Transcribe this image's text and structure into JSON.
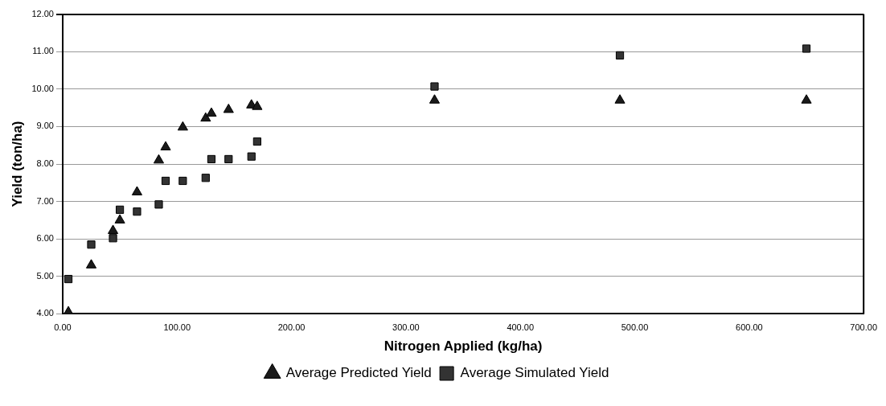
{
  "chart_data": {
    "type": "scatter",
    "xlabel": "Nitrogen Applied (kg/ha)",
    "ylabel": "Yield (ton/ha)",
    "xlim": [
      0,
      700
    ],
    "xticks": [
      {
        "value": 0,
        "label": "0.00"
      },
      {
        "value": 100,
        "label": "100.00"
      },
      {
        "value": 200,
        "label": "200.00"
      },
      {
        "value": 300,
        "label": "300.00"
      },
      {
        "value": 400,
        "label": "400.00"
      },
      {
        "value": 500,
        "label": "500.00"
      },
      {
        "value": 600,
        "label": "600.00"
      },
      {
        "value": 700,
        "label": "700.00"
      }
    ],
    "ylim": [
      4,
      12
    ],
    "yticks": [
      {
        "value": 4,
        "label": "4.00"
      },
      {
        "value": 5,
        "label": "5.00"
      },
      {
        "value": 6,
        "label": "6.00"
      },
      {
        "value": 7,
        "label": "7.00"
      },
      {
        "value": 8,
        "label": "8.00"
      },
      {
        "value": 9,
        "label": "9.00"
      },
      {
        "value": 10,
        "label": "10.00"
      },
      {
        "value": 11,
        "label": "11.00"
      },
      {
        "value": 12,
        "label": "12.00"
      }
    ],
    "grid": "y",
    "legend": "bottom",
    "series": [
      {
        "name": "Average Predicted Yield",
        "color": "#1a1a1a",
        "marker": "triangle",
        "x": [
          5,
          25,
          44,
          50,
          65,
          84,
          90,
          105,
          125,
          130,
          145,
          165,
          170,
          325,
          487,
          650
        ],
        "values": [
          4.05,
          5.3,
          6.22,
          6.5,
          7.25,
          8.1,
          8.45,
          8.98,
          9.22,
          9.35,
          9.45,
          9.57,
          9.53,
          9.7,
          9.7,
          9.7
        ]
      },
      {
        "name": "Average Simulated Yield",
        "color": "#333333",
        "marker": "square",
        "x": [
          5,
          25,
          44,
          50,
          65,
          84,
          90,
          105,
          125,
          130,
          145,
          165,
          170,
          325,
          487,
          650
        ],
        "values": [
          4.93,
          5.85,
          6.02,
          6.78,
          6.73,
          6.92,
          7.55,
          7.55,
          7.63,
          8.13,
          8.13,
          8.2,
          8.6,
          10.07,
          10.9,
          11.08
        ]
      }
    ]
  }
}
